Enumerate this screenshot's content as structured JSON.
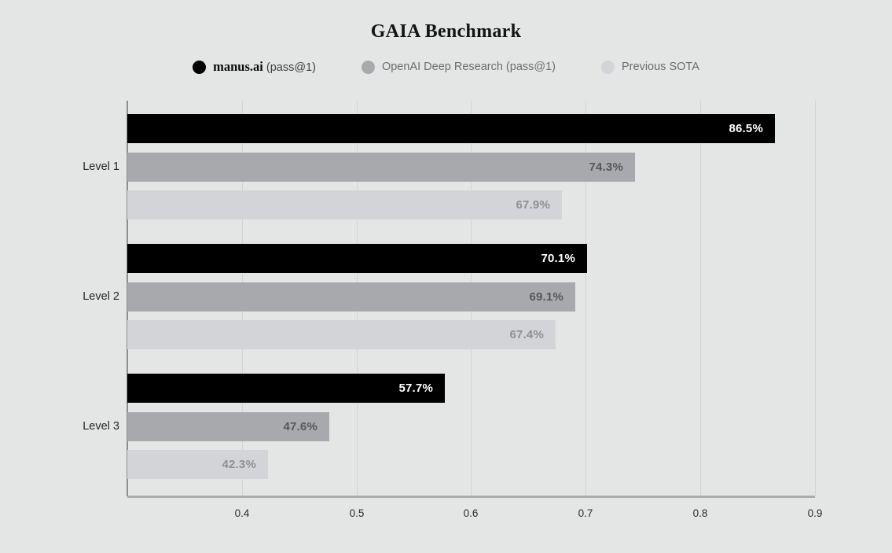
{
  "title": "GAIA Benchmark",
  "legend": {
    "items": [
      {
        "primary": "manus.ai",
        "secondary": " (pass@1)",
        "color": "#000000",
        "brand": true
      },
      {
        "primary": "OpenAI Deep Research",
        "secondary": " (pass@1)",
        "color": "#a7a9ad",
        "brand": false
      },
      {
        "primary": "Previous SOTA",
        "secondary": "",
        "color": "#d2d4d8",
        "brand": false
      }
    ]
  },
  "chart_data": {
    "type": "bar",
    "orientation": "horizontal",
    "title": "GAIA Benchmark",
    "categories": [
      "Level 1",
      "Level 2",
      "Level 3"
    ],
    "series": [
      {
        "name": "manus.ai (pass@1)",
        "color": "#000000",
        "label_color": "#ffffff",
        "values": [
          0.865,
          0.701,
          0.577
        ],
        "labels": [
          "86.5%",
          "70.1%",
          "57.7%"
        ]
      },
      {
        "name": "OpenAI Deep Research (pass@1)",
        "color": "#a7a9ad",
        "label_color": "#55575b",
        "values": [
          0.743,
          0.691,
          0.476
        ],
        "labels": [
          "74.3%",
          "69.1%",
          "47.6%"
        ]
      },
      {
        "name": "Previous SOTA",
        "color": "#d2d4d8",
        "label_color": "#8e9095",
        "values": [
          0.679,
          0.674,
          0.423
        ],
        "labels": [
          "67.9%",
          "67.4%",
          "42.3%"
        ]
      }
    ],
    "xlim": [
      0.3,
      0.9
    ],
    "xticks": [
      0.4,
      0.5,
      0.6,
      0.7,
      0.8,
      0.9
    ],
    "xtick_labels": [
      "0.4",
      "0.5",
      "0.6",
      "0.7",
      "0.8",
      "0.9"
    ],
    "grid": true,
    "legend_position": "top",
    "background": "#e4e5e5"
  }
}
